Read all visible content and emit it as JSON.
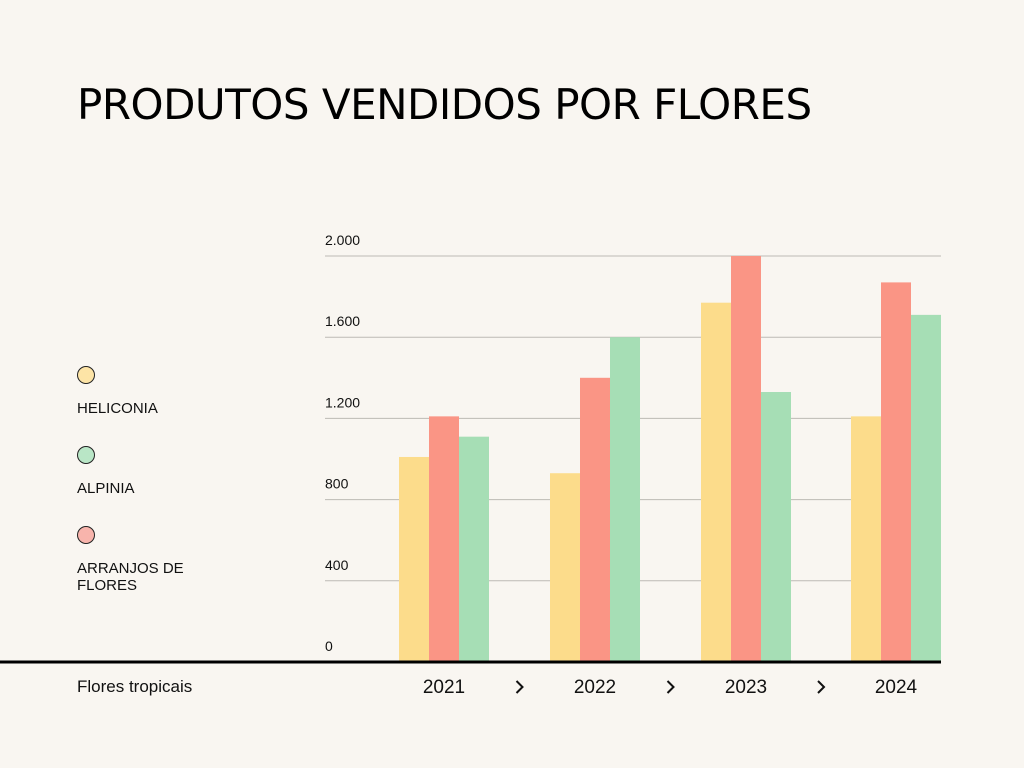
{
  "chart_data": {
    "type": "bar",
    "title": "PRODUTOS VENDIDOS POR FLORES",
    "xlabel": "Flores tropicais",
    "ylabel": "",
    "categories": [
      "2021",
      "2022",
      "2023",
      "2024"
    ],
    "yticks": [
      0,
      400,
      800,
      1200,
      1600,
      2000
    ],
    "ytick_labels": [
      "0",
      "400",
      "800",
      "1.200",
      "1.600",
      "2.000"
    ],
    "ylim": [
      0,
      2000
    ],
    "grid": true,
    "legend_position": "left",
    "series": [
      {
        "name": "HELICONIA",
        "color": "#fcdc8b",
        "values": [
          1010,
          930,
          1770,
          1210
        ]
      },
      {
        "name": "ARRANJOS DE FLORES",
        "color": "#fa9585",
        "values": [
          1210,
          1400,
          2000,
          1870
        ]
      },
      {
        "name": "ALPINIA",
        "color": "#a6deb5",
        "values": [
          1110,
          1600,
          1330,
          1710
        ]
      }
    ]
  },
  "legend": [
    {
      "label": "HELICONIA",
      "color": "#fde4a6"
    },
    {
      "label": "ALPINIA",
      "color": "#b9e6c6"
    },
    {
      "label": "ARRANJOS DE FLORES",
      "color": "#f8b4ac"
    }
  ]
}
